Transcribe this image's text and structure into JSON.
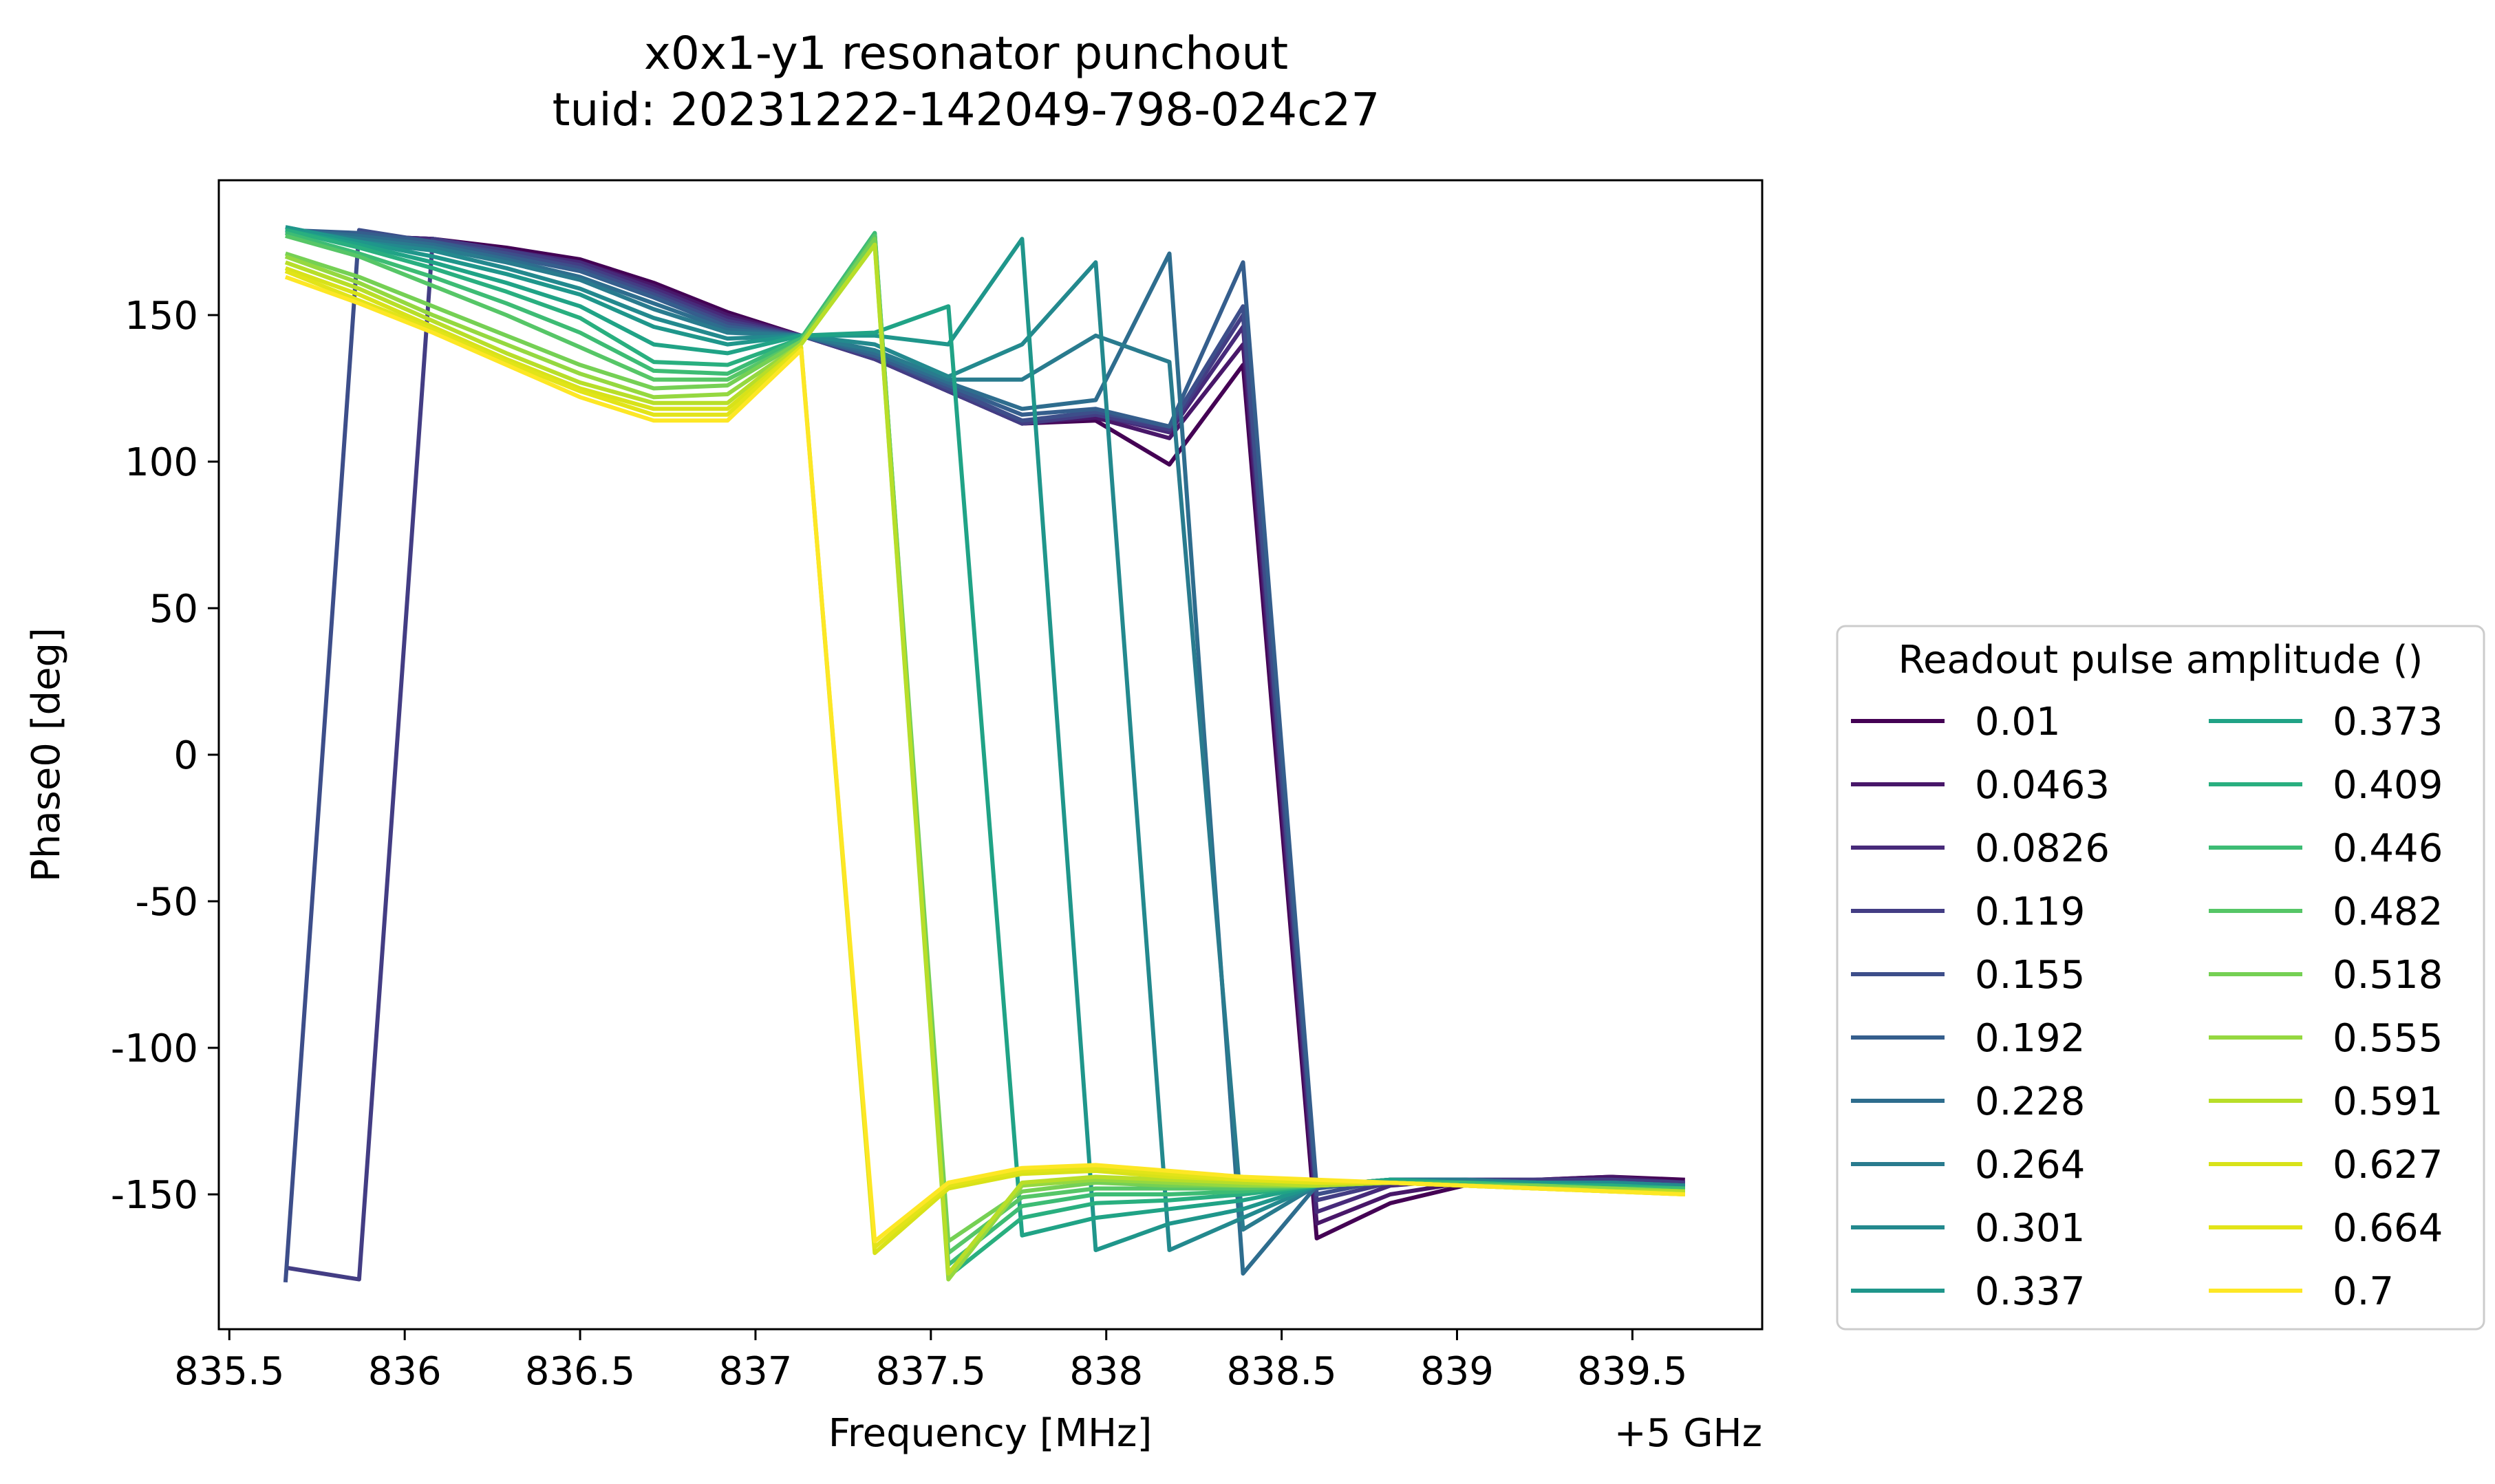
{
  "chart_data": {
    "type": "line",
    "title": "x0x1-y1 resonator punchout",
    "subtitle": "tuid: 20231222-142049-798-024c27",
    "xlabel": "Frequency [MHz]",
    "x_offset_label": "+5 GHz",
    "ylabel": "Phase0 [deg]",
    "xlim": [
      835.47,
      839.87
    ],
    "ylim": [
      -196,
      196
    ],
    "x_ticks": [
      835.5,
      836,
      836.5,
      837,
      837.5,
      838,
      838.5,
      839,
      839.5
    ],
    "x_tick_labels": [
      "835.5",
      "836",
      "836.5",
      "837",
      "837.5",
      "838",
      "838.5",
      "839",
      "839.5"
    ],
    "y_ticks": [
      150,
      100,
      50,
      0,
      -50,
      -100,
      -150
    ],
    "y_tick_labels": [
      "150",
      "100",
      "50",
      "0",
      "-50",
      "-100",
      "-150"
    ],
    "grid": false,
    "legend": {
      "title": "Readout pulse amplitude ()",
      "placement": "outside-right",
      "columns": 2
    },
    "x": [
      835.66,
      835.87,
      836.08,
      836.29,
      836.5,
      836.71,
      836.92,
      837.13,
      837.34,
      837.55,
      837.76,
      837.97,
      838.18,
      838.39,
      838.6,
      838.81,
      839.02,
      839.23,
      839.44,
      839.65
    ],
    "series": [
      {
        "name": "0.01",
        "color": "#440154",
        "values": [
          178,
          177,
          176,
          173,
          169,
          161,
          151,
          143,
          135,
          124,
          113,
          114,
          99,
          133,
          -165,
          -153,
          -147,
          -145,
          -144,
          -145
        ]
      },
      {
        "name": "0.0463",
        "color": "#481769",
        "values": [
          178,
          177,
          176,
          172,
          168,
          160,
          150,
          143,
          135,
          124,
          113,
          115,
          108,
          140,
          -160,
          -150,
          -146,
          -145,
          -144,
          -146
        ]
      },
      {
        "name": "0.0826",
        "color": "#472a7a",
        "values": [
          178,
          177,
          176,
          172,
          168,
          159,
          149,
          143,
          135,
          124,
          113,
          116,
          110,
          146,
          -156,
          -147,
          -145,
          -145,
          -145,
          -146
        ]
      },
      {
        "name": "0.119",
        "color": "#433d84",
        "values": [
          -175,
          -179,
          176,
          172,
          167,
          158,
          148,
          143,
          135,
          124,
          113,
          116,
          111,
          150,
          -152,
          -146,
          -145,
          -145,
          -145,
          -146
        ]
      },
      {
        "name": "0.155",
        "color": "#3d4e8a",
        "values": [
          -180,
          179,
          175,
          171,
          166,
          157,
          147,
          143,
          136,
          125,
          114,
          117,
          112,
          153,
          -150,
          -145,
          -145,
          -146,
          -146,
          -147
        ]
      },
      {
        "name": "0.192",
        "color": "#355e8d",
        "values": [
          179,
          178,
          175,
          170,
          165,
          156,
          146,
          143,
          136,
          126,
          116,
          118,
          112,
          168,
          -148,
          -145,
          -145,
          -146,
          -146,
          -147
        ]
      },
      {
        "name": "0.228",
        "color": "#2e6d8e",
        "values": [
          179,
          177,
          174,
          169,
          163,
          154,
          145,
          143,
          137,
          127,
          118,
          121,
          171,
          -177,
          -147,
          -145,
          -145,
          -146,
          -146,
          -147
        ]
      },
      {
        "name": "0.264",
        "color": "#297b8e",
        "values": [
          179,
          176,
          173,
          168,
          162,
          152,
          144,
          143,
          138,
          128,
          128,
          143,
          134,
          -162,
          -147,
          -145,
          -145,
          -146,
          -146,
          -147
        ]
      },
      {
        "name": "0.301",
        "color": "#23898e",
        "values": [
          180,
          175,
          172,
          166,
          159,
          149,
          142,
          143,
          140,
          129,
          140,
          168,
          -169,
          -158,
          -147,
          -145,
          -146,
          -146,
          -146,
          -147
        ]
      },
      {
        "name": "0.337",
        "color": "#1f968b",
        "values": [
          180,
          175,
          170,
          164,
          157,
          146,
          140,
          143,
          143,
          140,
          176,
          -169,
          -160,
          -155,
          -147,
          -145,
          -146,
          -146,
          -147,
          -148
        ]
      },
      {
        "name": "0.373",
        "color": "#20a386",
        "values": [
          179,
          174,
          168,
          161,
          153,
          140,
          137,
          143,
          144,
          153,
          -164,
          -158,
          -155,
          -152,
          -147,
          -145,
          -146,
          -147,
          -147,
          -148
        ]
      },
      {
        "name": "0.409",
        "color": "#29af7f",
        "values": [
          179,
          173,
          166,
          158,
          149,
          134,
          133,
          142,
          178,
          -178,
          -158,
          -153,
          -152,
          -150,
          -147,
          -146,
          -146,
          -147,
          -147,
          -148
        ]
      },
      {
        "name": "0.446",
        "color": "#3dbc74",
        "values": [
          178,
          171,
          163,
          154,
          144,
          131,
          130,
          142,
          178,
          -174,
          -154,
          -150,
          -150,
          -149,
          -147,
          -146,
          -146,
          -147,
          -148,
          -148
        ]
      },
      {
        "name": "0.482",
        "color": "#56c667",
        "values": [
          177,
          170,
          160,
          150,
          139,
          128,
          128,
          141,
          177,
          -170,
          -151,
          -148,
          -148,
          -148,
          -147,
          -146,
          -147,
          -147,
          -148,
          -149
        ]
      },
      {
        "name": "0.518",
        "color": "#75d054",
        "values": [
          171,
          163,
          153,
          143,
          133,
          125,
          126,
          141,
          176,
          -166,
          -149,
          -146,
          -147,
          -147,
          -147,
          -146,
          -147,
          -147,
          -148,
          -149
        ]
      },
      {
        "name": "0.555",
        "color": "#95d840",
        "values": [
          170,
          161,
          150,
          140,
          130,
          122,
          123,
          140,
          174,
          -179,
          -147,
          -145,
          -146,
          -147,
          -147,
          -146,
          -147,
          -148,
          -148,
          -149
        ]
      },
      {
        "name": "0.591",
        "color": "#b8de29",
        "values": [
          168,
          159,
          148,
          137,
          127,
          120,
          120,
          140,
          174,
          -177,
          -146,
          -144,
          -145,
          -146,
          -147,
          -146,
          -147,
          -148,
          -149,
          -149
        ]
      },
      {
        "name": "0.627",
        "color": "#d8e219",
        "values": [
          166,
          157,
          146,
          135,
          125,
          118,
          118,
          139,
          -170,
          -148,
          -143,
          -142,
          -144,
          -145,
          -146,
          -146,
          -147,
          -148,
          -149,
          -150
        ]
      },
      {
        "name": "0.664",
        "color": "#e2e418",
        "values": [
          165,
          155,
          145,
          134,
          124,
          116,
          116,
          139,
          -168,
          -147,
          -142,
          -141,
          -143,
          -145,
          -146,
          -146,
          -147,
          -148,
          -149,
          -150
        ]
      },
      {
        "name": "0.7",
        "color": "#fde725",
        "values": [
          163,
          154,
          144,
          133,
          122,
          114,
          114,
          138,
          -166,
          -146,
          -141,
          -140,
          -142,
          -144,
          -145,
          -146,
          -147,
          -148,
          -149,
          -150
        ]
      }
    ]
  }
}
